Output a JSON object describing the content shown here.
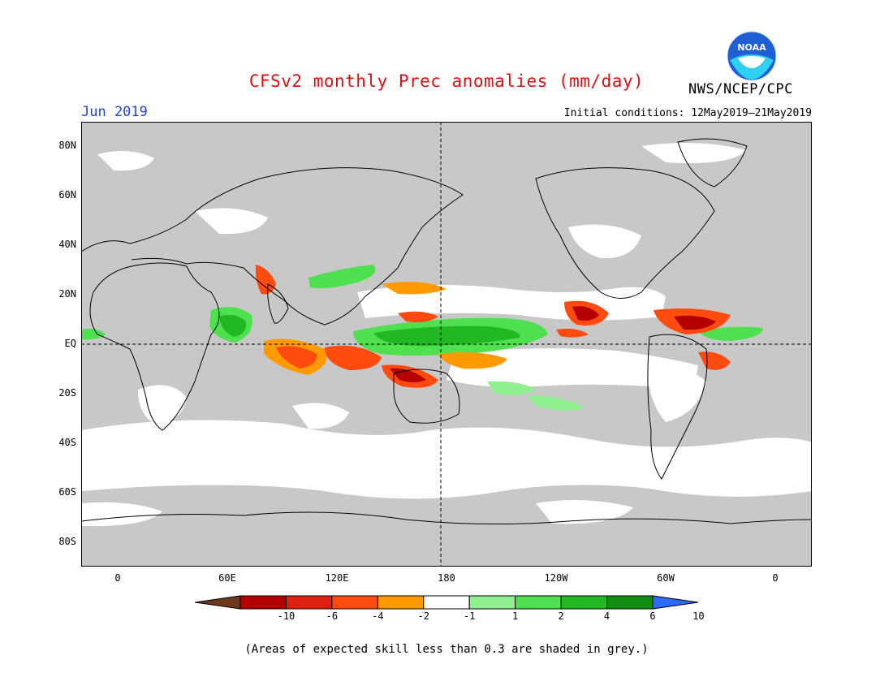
{
  "header": {
    "title": "CFSv2 monthly Prec anomalies (mm/day)",
    "month": "Jun 2019",
    "initial_conditions": "Initial conditions: 12May2019–21May2019",
    "agency": "NWS/NCEP/CPC",
    "logo_text": "NOAA"
  },
  "axes": {
    "y_ticks": [
      {
        "label": "80N",
        "lat": 80
      },
      {
        "label": "60N",
        "lat": 60
      },
      {
        "label": "40N",
        "lat": 40
      },
      {
        "label": "20N",
        "lat": 20
      },
      {
        "label": "EQ",
        "lat": 0
      },
      {
        "label": "20S",
        "lat": -20
      },
      {
        "label": "40S",
        "lat": -40
      },
      {
        "label": "60S",
        "lat": -60
      },
      {
        "label": "80S",
        "lat": -80
      }
    ],
    "x_ticks": [
      {
        "label": "0",
        "lon": 0
      },
      {
        "label": "60E",
        "lon": 60
      },
      {
        "label": "120E",
        "lon": 120
      },
      {
        "label": "180",
        "lon": 180
      },
      {
        "label": "120W",
        "lon": 240
      },
      {
        "label": "60W",
        "lon": 300
      },
      {
        "label": "0",
        "lon": 360
      }
    ],
    "lon_range": [
      -20,
      380
    ],
    "lat_range": [
      -90,
      90
    ]
  },
  "colorbar": {
    "labels": [
      "-10",
      "-6",
      "-4",
      "-2",
      "-1",
      "1",
      "2",
      "4",
      "6",
      "10"
    ],
    "colors": [
      "#6b3a1e",
      "#b40000",
      "#e02010",
      "#ff4a10",
      "#ff9a00",
      "#ffffff",
      "#8ff08f",
      "#4fe04f",
      "#22b822",
      "#118c11",
      "#2b6bff"
    ]
  },
  "colors": {
    "grey_mask": "#c8c8c8",
    "title": "#dd1111",
    "month": "#2244dd"
  },
  "footnote": "(Areas of expected skill less than 0.3 are shaded in grey.)"
}
